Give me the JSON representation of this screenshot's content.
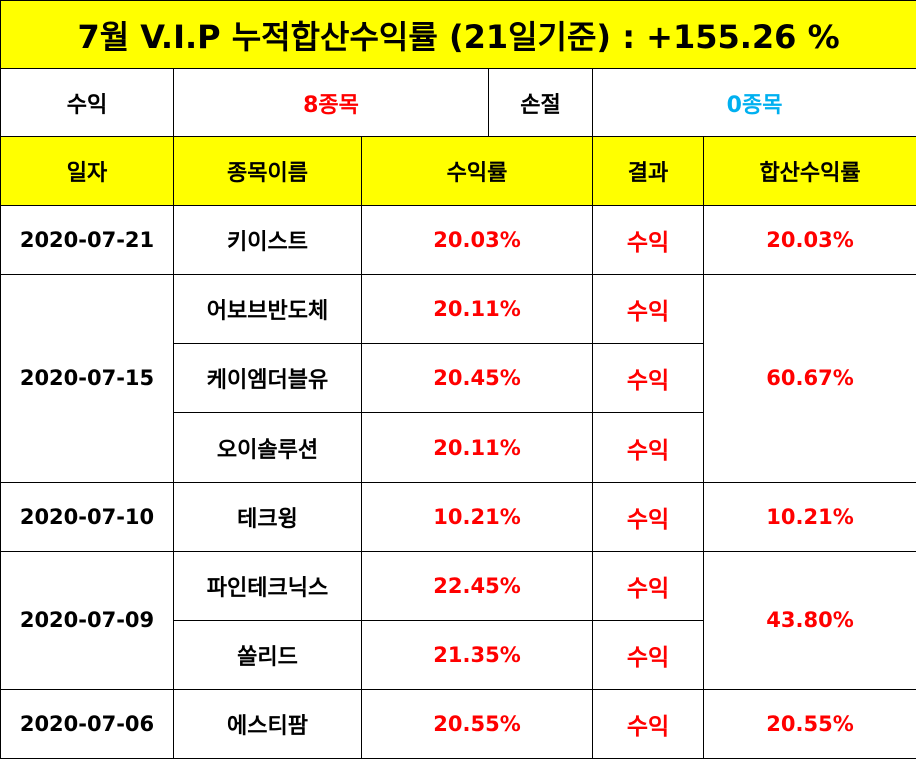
{
  "title": "7월 V.I.P 누적합산수익률 (21일기준) : +155.26 %",
  "summary": {
    "profit_label": "수익",
    "profit_value": "8종목",
    "loss_label": "손절",
    "loss_value": "0종목"
  },
  "headers": {
    "date": "일자",
    "name": "종목이름",
    "rate": "수익률",
    "result": "결과",
    "total": "합산수익률"
  },
  "groups": [
    {
      "date": "2020-07-21",
      "total": "20.03%",
      "rows": [
        {
          "name": "키이스트",
          "rate": "20.03%",
          "result": "수익"
        }
      ]
    },
    {
      "date": "2020-07-15",
      "total": "60.67%",
      "rows": [
        {
          "name": "어보브반도체",
          "rate": "20.11%",
          "result": "수익"
        },
        {
          "name": "케이엠더블유",
          "rate": "20.45%",
          "result": "수익"
        },
        {
          "name": "오이솔루션",
          "rate": "20.11%",
          "result": "수익"
        }
      ]
    },
    {
      "date": "2020-07-10",
      "total": "10.21%",
      "rows": [
        {
          "name": "테크윙",
          "rate": "10.21%",
          "result": "수익"
        }
      ]
    },
    {
      "date": "2020-07-09",
      "total": "43.80%",
      "rows": [
        {
          "name": "파인테크닉스",
          "rate": "22.45%",
          "result": "수익"
        },
        {
          "name": "쏠리드",
          "rate": "21.35%",
          "result": "수익"
        }
      ]
    },
    {
      "date": "2020-07-06",
      "total": "20.55%",
      "rows": [
        {
          "name": "에스티팜",
          "rate": "20.55%",
          "result": "수익"
        }
      ]
    }
  ],
  "colors": {
    "header_bg": "#ffff00",
    "profit": "#ff0000",
    "loss": "#00b0f0"
  }
}
